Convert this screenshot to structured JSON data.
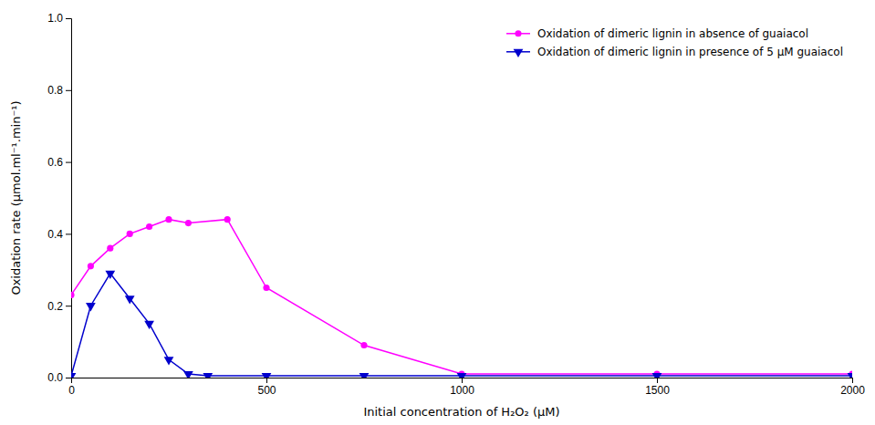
{
  "chart_data": {
    "type": "line",
    "xlabel": "Initial concentration of H₂O₂ (μM)",
    "ylabel": "Oxidation rate (μmol.ml⁻¹.min⁻¹)",
    "series": [
      {
        "name": "Oxidation of dimeric lignin in absence of guaiacol",
        "color": "#FF00FF",
        "marker": "circle",
        "line_style": "solid",
        "x": [
          0,
          50,
          100,
          150,
          200,
          250,
          300,
          400,
          500,
          750,
          1000,
          1500,
          2000
        ],
        "values": [
          0.23,
          0.31,
          0.36,
          0.4,
          0.42,
          0.44,
          0.43,
          0.44,
          0.25,
          0.09,
          0.01,
          0.01,
          0.01
        ]
      },
      {
        "name": "Oxidation of dimeric lignin in presence of 5 μM guaiacol",
        "color": "#0000CD",
        "marker": "triangle-down",
        "line_style": "solid",
        "x": [
          0,
          50,
          100,
          150,
          200,
          250,
          300,
          350,
          500,
          750,
          1000,
          1500,
          2000
        ],
        "values": [
          0.005,
          0.2,
          0.29,
          0.22,
          0.15,
          0.05,
          0.01,
          0.005,
          0.005,
          0.005,
          0.005,
          0.005,
          0.005
        ]
      }
    ],
    "xlim": [
      0,
      2000
    ],
    "xticks": [
      0,
      500,
      1000,
      1500,
      2000
    ],
    "ylim": [
      0,
      1.0
    ],
    "yticks": [
      {
        "value": 0,
        "label": "0.0"
      },
      0.2,
      0.4,
      0.6,
      0.8,
      {
        "value": 1,
        "label": "1.0"
      }
    ],
    "grid": false,
    "legend": "upper right"
  }
}
